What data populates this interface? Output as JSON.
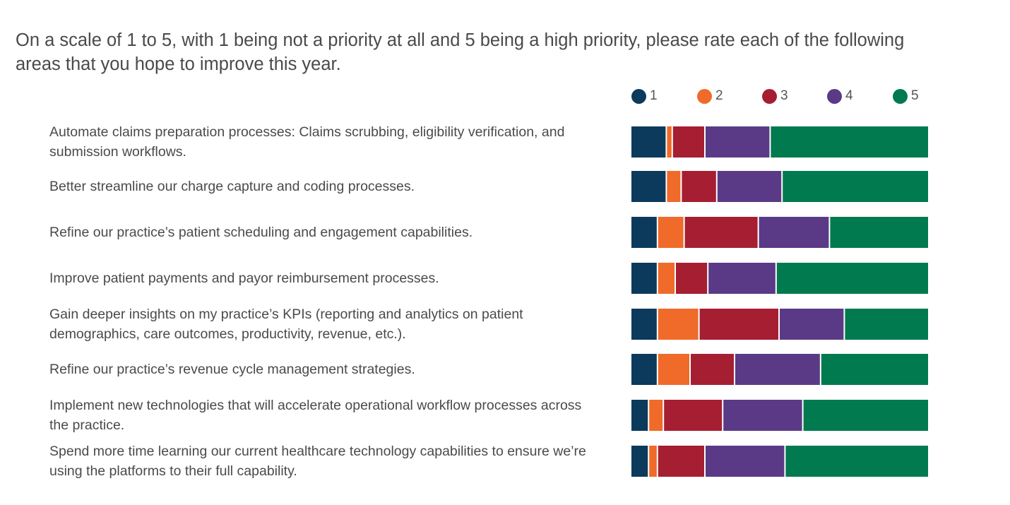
{
  "title": "On a scale of 1 to 5, with 1 being not a priority at all and 5 being a high priority, please rate each of the following areas that you hope to improve this year.",
  "legend": [
    "1",
    "2",
    "3",
    "4",
    "5"
  ],
  "colors": [
    "#0b3a5c",
    "#f06a2a",
    "#a61e32",
    "#5a3a86",
    "#007a4e"
  ],
  "chart_data": {
    "type": "bar",
    "orientation": "horizontal",
    "stacked": true,
    "normalized": true,
    "categories": [
      "Automate claims preparation processes: Claims scrubbing, eligibility verification, and submission workflows.",
      "Better streamline our charge capture and coding processes.",
      "Refine our practice’s patient scheduling and engagement capabilities.",
      "Improve patient payments and payor reimbursement processes.",
      "Gain deeper insights on my practice’s KPIs (reporting and analytics on patient demographics, care outcomes, productivity, revenue, etc.).",
      "Refine our practice’s revenue cycle management strategies.",
      "Implement new technologies that will accelerate operational workflow processes across the practice.",
      "Spend more time learning our current healthcare technology capabilities to ensure we’re using the platforms to their full capability."
    ],
    "series": [
      {
        "name": "1",
        "values": [
          12,
          12,
          9,
          9,
          9,
          9,
          6,
          6
        ]
      },
      {
        "name": "2",
        "values": [
          2,
          5,
          9,
          6,
          14,
          11,
          5,
          3
        ]
      },
      {
        "name": "3",
        "values": [
          11,
          12,
          25,
          11,
          27,
          15,
          20,
          16
        ]
      },
      {
        "name": "4",
        "values": [
          22,
          22,
          24,
          23,
          22,
          29,
          27,
          27
        ]
      },
      {
        "name": "5",
        "values": [
          53,
          49,
          33,
          51,
          28,
          36,
          42,
          48
        ]
      }
    ],
    "xlim": [
      0,
      100
    ],
    "legend_position": "top",
    "grid": false
  }
}
